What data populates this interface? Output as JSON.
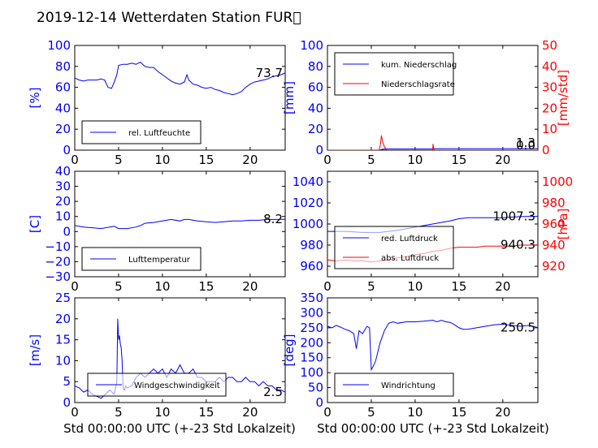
{
  "title": "2019-12-14 Wetterdaten Station FUR\u0000",
  "xlabel": "Std 00:00:00 UTC (+-23 Std Lokalzeit)",
  "colors": {
    "blue": "#0000ff",
    "red": "#ff0000"
  },
  "chart_data": [
    {
      "type": "line",
      "ylabel": "[%]",
      "ylim": [
        0,
        100
      ],
      "yticks": [
        "0",
        "20",
        "40",
        "60",
        "80",
        "100"
      ],
      "xlim": [
        0,
        24
      ],
      "xticks": [
        "0",
        "5",
        "10",
        "15",
        "20"
      ],
      "last_value": "73.7",
      "legend_placement": "lower-left",
      "series": [
        {
          "name": "rel. Luftfeuchte",
          "color": "#0000ff",
          "x": [
            0,
            0.5,
            1,
            1.5,
            2,
            2.5,
            3,
            3.4,
            3.8,
            4.2,
            4.5,
            4.8,
            5,
            5.5,
            6,
            6.5,
            7,
            7.5,
            8,
            8.5,
            9,
            9.5,
            10,
            10.5,
            11,
            11.5,
            12,
            12.5,
            12.8,
            13,
            13.5,
            14,
            14.5,
            15,
            15.5,
            16,
            16.5,
            17,
            17.5,
            18,
            18.5,
            19,
            19.5,
            20,
            20.5,
            21,
            21.5,
            22,
            22.5,
            23,
            23.5,
            24
          ],
          "y": [
            69,
            67,
            66,
            67,
            67,
            67,
            68,
            67,
            60,
            59,
            65,
            72,
            81,
            82,
            82,
            83,
            82,
            84,
            80,
            79,
            79,
            75,
            72,
            69,
            66,
            64,
            63,
            65,
            72,
            67,
            63,
            62,
            60,
            59,
            60,
            58,
            57,
            55,
            54,
            53,
            54,
            56,
            60,
            63,
            65,
            66,
            67,
            68,
            70,
            71,
            72,
            73.7
          ]
        }
      ]
    },
    {
      "type": "line",
      "ylabel": "[mm]",
      "ylim": [
        0,
        100
      ],
      "yticks": [
        "0",
        "20",
        "40",
        "60",
        "80",
        "100"
      ],
      "ylabel2": "[mm/std]",
      "ylim2": [
        0,
        50
      ],
      "yticks2": [
        "0",
        "10",
        "20",
        "30",
        "40",
        "50"
      ],
      "xlim": [
        0,
        24
      ],
      "xticks": [
        "0",
        "5",
        "10",
        "15",
        "20"
      ],
      "last_value": "1.3",
      "last_value2": "0.0",
      "legend_placement": "upper-left",
      "series": [
        {
          "name": "kum. Niederschlag",
          "color": "#0000ff",
          "axis": "left",
          "x": [
            0,
            6,
            6.2,
            6.5,
            12,
            12.2,
            24
          ],
          "y": [
            0,
            0,
            0.8,
            1.1,
            1.1,
            1.3,
            1.3
          ]
        },
        {
          "name": "Niederschlagsrate",
          "color": "#ff0000",
          "axis": "right",
          "x": [
            0,
            5.9,
            6.05,
            6.15,
            6.3,
            6.45,
            6.6,
            6.8,
            12,
            12.05,
            12.15,
            12.3,
            24
          ],
          "y": [
            0,
            0,
            3,
            7,
            4,
            2,
            1,
            0,
            0,
            3,
            0,
            0,
            0
          ]
        }
      ]
    },
    {
      "type": "line",
      "ylabel": "[C]",
      "ylim": [
        -30,
        40
      ],
      "yticks": [
        "−30",
        "−20",
        "−10",
        "0",
        "10",
        "20",
        "30",
        "40"
      ],
      "xlim": [
        0,
        24
      ],
      "xticks": [
        "0",
        "5",
        "10",
        "15",
        "20"
      ],
      "last_value": "8.2",
      "legend_placement": "lower-left",
      "series": [
        {
          "name": "Lufttemperatur",
          "color": "#0000ff",
          "x": [
            0,
            1,
            2,
            3,
            4,
            4.5,
            5,
            6,
            7,
            7.5,
            8,
            9,
            10,
            11,
            12,
            12.5,
            13,
            14,
            15,
            16,
            17,
            18,
            19,
            20,
            21,
            22,
            23,
            24
          ],
          "y": [
            4,
            3,
            2.5,
            2,
            3,
            3.5,
            2,
            2,
            3,
            4,
            5.5,
            6,
            7,
            8,
            7,
            8,
            8,
            7,
            6.5,
            6,
            6.5,
            7,
            7,
            7.5,
            7.5,
            8,
            8,
            8.2
          ]
        }
      ]
    },
    {
      "type": "line",
      "ylim": [
        950,
        1050
      ],
      "yticks": [
        "960",
        "980",
        "1000",
        "1020",
        "1040"
      ],
      "ylabel2": "[hPa]",
      "ylim2": [
        910,
        1010
      ],
      "yticks2": [
        "920",
        "940",
        "960",
        "980",
        "1000"
      ],
      "xlim": [
        0,
        24
      ],
      "xticks": [
        "0",
        "5",
        "10",
        "15",
        "20"
      ],
      "last_value": "1007.3",
      "last_value2": "940.3",
      "legend_placement": "lower-left",
      "series": [
        {
          "name": "red. Luftdruck",
          "color": "#0000ff",
          "axis": "left",
          "x": [
            0,
            2,
            4,
            5,
            6,
            8,
            10,
            12,
            14,
            15,
            16,
            18,
            20,
            22,
            24
          ],
          "y": [
            993,
            993,
            992,
            992,
            992,
            994,
            997,
            1000,
            1003,
            1005,
            1006,
            1006,
            1006,
            1007,
            1007.3
          ]
        },
        {
          "name": "abs. Luftdruck",
          "color": "#ff0000",
          "axis": "right",
          "x": [
            0,
            1,
            2,
            3,
            4,
            5,
            6,
            7,
            8,
            9,
            10,
            11,
            12,
            13,
            14,
            15,
            16,
            17,
            18,
            19,
            20,
            21,
            22,
            23,
            24
          ],
          "y": [
            926,
            925,
            926,
            925,
            925,
            924,
            925,
            926,
            928,
            929,
            931,
            932,
            934,
            935,
            937,
            938,
            938,
            938,
            939,
            939,
            939,
            939,
            940,
            940,
            940.3
          ]
        }
      ]
    },
    {
      "type": "line",
      "ylabel": "[m/s]",
      "ylim": [
        0,
        25
      ],
      "yticks": [
        "0",
        "5",
        "10",
        "15",
        "20",
        "25"
      ],
      "xlim": [
        0,
        24
      ],
      "xticks": [
        "0",
        "5",
        "10",
        "15",
        "20"
      ],
      "last_value": "2.5",
      "legend_placement": "lower-center",
      "series": [
        {
          "name": "Windgeschwindigkeit",
          "color": "#0000ff",
          "x": [
            0,
            0.5,
            1,
            1.5,
            2,
            2.5,
            3,
            3.5,
            4,
            4.5,
            4.8,
            4.9,
            5,
            5.1,
            5.2,
            5.3,
            5.4,
            5.5,
            5.6,
            5.7,
            5.8,
            6,
            6.5,
            7,
            7.5,
            8,
            8.5,
            9,
            9.5,
            10,
            10.5,
            11,
            11.5,
            12,
            12.5,
            13,
            13.5,
            14,
            14.5,
            15,
            15.5,
            16,
            16.5,
            17,
            17.5,
            18,
            18.5,
            19,
            19.5,
            20,
            20.5,
            21,
            21.5,
            22,
            22.5,
            23,
            23.5,
            24
          ],
          "y": [
            4,
            3.5,
            2.5,
            3,
            2,
            1.5,
            1,
            2,
            3,
            2,
            5,
            20,
            15,
            16,
            14,
            13,
            10,
            4,
            3,
            3,
            4,
            3.5,
            4,
            6,
            7,
            6,
            7,
            8,
            7,
            8,
            6,
            8,
            7,
            9,
            7,
            7,
            8,
            6,
            6,
            5,
            5,
            5,
            6,
            5,
            6,
            6,
            5,
            5,
            6,
            5,
            5,
            4,
            5,
            4,
            4,
            3,
            3,
            2.5
          ]
        }
      ]
    },
    {
      "type": "line",
      "ylabel": "[deg]",
      "ylim": [
        0,
        350
      ],
      "yticks": [
        "0",
        "50",
        "100",
        "150",
        "200",
        "250",
        "300",
        "350"
      ],
      "xlim": [
        0,
        24
      ],
      "xticks": [
        "0",
        "5",
        "10",
        "15",
        "20"
      ],
      "last_value": "250.5",
      "legend_placement": "lower-left",
      "series": [
        {
          "name": "Windrichtung",
          "color": "#0000ff",
          "x": [
            0,
            0.5,
            1,
            1.5,
            2,
            2.5,
            3,
            3.3,
            3.6,
            4,
            4.5,
            4.8,
            5,
            5.2,
            5.5,
            6,
            6.5,
            7,
            7.5,
            8,
            9,
            10,
            11,
            12,
            12.5,
            13,
            13.5,
            14,
            14.5,
            15,
            15.5,
            16,
            17,
            18,
            19,
            20,
            21,
            22,
            23,
            24
          ],
          "y": [
            255,
            250,
            258,
            252,
            245,
            240,
            230,
            180,
            240,
            230,
            255,
            250,
            110,
            120,
            140,
            200,
            240,
            265,
            270,
            265,
            270,
            270,
            272,
            275,
            270,
            275,
            270,
            268,
            260,
            250,
            245,
            245,
            250,
            255,
            260,
            262,
            258,
            255,
            258,
            250.5
          ]
        }
      ]
    }
  ]
}
